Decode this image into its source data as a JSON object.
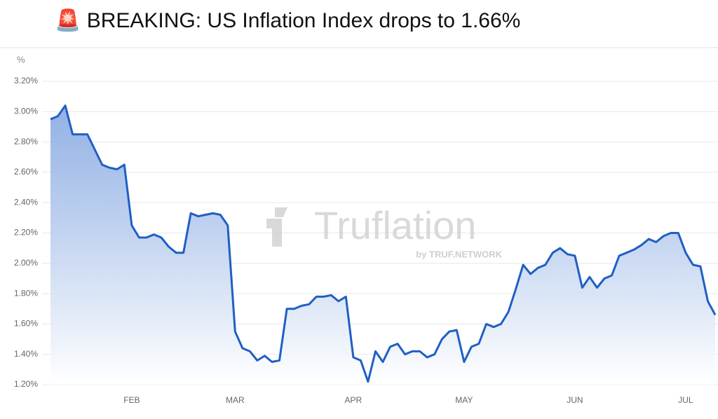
{
  "chart_data": {
    "type": "line",
    "title": "🚨 BREAKING: US Inflation Index drops to 1.66%",
    "y_label": "%",
    "watermark": "Truflation",
    "watermark_sub": "by TRUF.NETWORK",
    "categories": [
      null,
      null,
      null,
      null,
      null,
      null,
      null,
      null,
      null,
      null,
      null,
      "FEB",
      null,
      null,
      null,
      null,
      null,
      null,
      null,
      null,
      null,
      null,
      null,
      null,
      null,
      "MAR",
      null,
      null,
      null,
      null,
      null,
      null,
      null,
      null,
      null,
      null,
      null,
      null,
      null,
      null,
      null,
      "APR",
      null,
      null,
      null,
      null,
      null,
      null,
      null,
      null,
      null,
      null,
      null,
      null,
      null,
      null,
      "MAY",
      null,
      null,
      null,
      null,
      null,
      null,
      null,
      null,
      null,
      null,
      null,
      null,
      null,
      null,
      "JUN",
      null,
      null,
      null,
      null,
      null,
      null,
      null,
      null,
      null,
      null,
      null,
      null,
      null,
      null,
      "JUL",
      null,
      null,
      null,
      null
    ],
    "series": [
      {
        "name": "US Inflation Index",
        "color": "#1f5fc4",
        "values": [
          2.95,
          2.97,
          3.04,
          2.85,
          2.85,
          2.85,
          2.75,
          2.65,
          2.63,
          2.62,
          2.65,
          2.25,
          2.17,
          2.17,
          2.19,
          2.17,
          2.11,
          2.07,
          2.07,
          2.33,
          2.31,
          2.32,
          2.33,
          2.32,
          2.25,
          1.55,
          1.44,
          1.42,
          1.36,
          1.39,
          1.35,
          1.36,
          1.7,
          1.7,
          1.72,
          1.73,
          1.78,
          1.78,
          1.79,
          1.75,
          1.78,
          1.38,
          1.36,
          1.22,
          1.42,
          1.35,
          1.45,
          1.47,
          1.4,
          1.42,
          1.42,
          1.38,
          1.4,
          1.5,
          1.55,
          1.56,
          1.35,
          1.45,
          1.47,
          1.6,
          1.58,
          1.6,
          1.68,
          1.83,
          1.99,
          1.93,
          1.97,
          1.99,
          2.07,
          2.1,
          2.06,
          2.05,
          1.84,
          1.91,
          1.84,
          1.9,
          1.92,
          2.05,
          2.07,
          2.09,
          2.12,
          2.16,
          2.14,
          2.18,
          2.2,
          2.2,
          2.07,
          1.99,
          1.98,
          1.75,
          1.66
        ]
      }
    ],
    "ylim": [
      1.2,
      3.3
    ],
    "yticks": [
      {
        "value": 1.2,
        "label": "1.20%"
      },
      {
        "value": 1.4,
        "label": "1.40%"
      },
      {
        "value": 1.6,
        "label": "1.60%"
      },
      {
        "value": 1.8,
        "label": "1.80%"
      },
      {
        "value": 2.0,
        "label": "2.00%"
      },
      {
        "value": 2.2,
        "label": "2.20%"
      },
      {
        "value": 2.4,
        "label": "2.40%"
      },
      {
        "value": 2.6,
        "label": "2.60%"
      },
      {
        "value": 2.8,
        "label": "2.80%"
      },
      {
        "value": 3.0,
        "label": "3.00%"
      },
      {
        "value": 3.2,
        "label": "3.20%"
      }
    ],
    "grid": true,
    "area": true
  }
}
